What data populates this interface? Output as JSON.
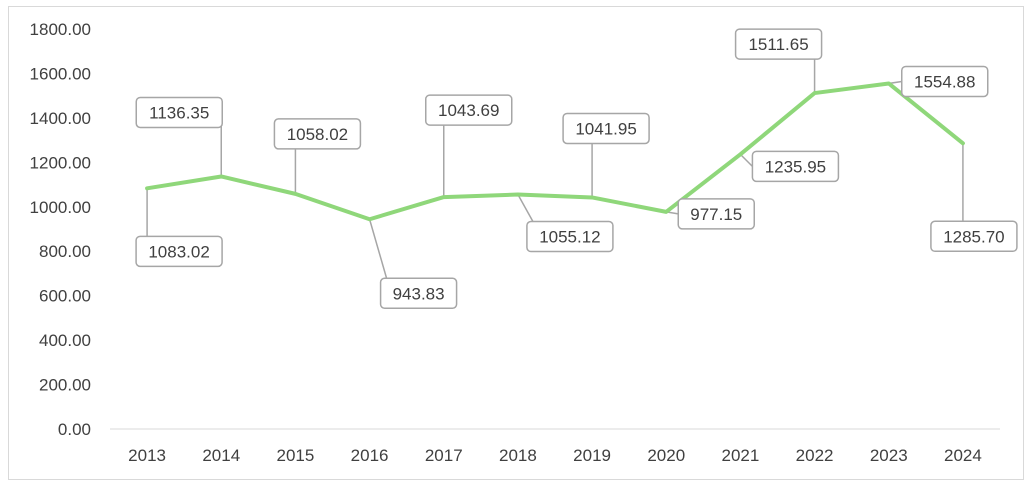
{
  "chart_data": {
    "type": "line",
    "categories": [
      "2013",
      "2014",
      "2015",
      "2016",
      "2017",
      "2018",
      "2019",
      "2020",
      "2021",
      "2022",
      "2023",
      "2024"
    ],
    "series": [
      {
        "values": [
          1083.02,
          1136.35,
          1058.02,
          943.83,
          1043.69,
          1055.12,
          1041.95,
          977.15,
          1235.95,
          1511.65,
          1554.88,
          1285.7
        ],
        "labels": [
          "1083.02",
          "1136.35",
          "1058.02",
          "943.83",
          "1043.69",
          "1055.12",
          "1041.95",
          "977.15",
          "1235.95",
          "1511.65",
          "1554.88",
          "1285.70"
        ],
        "color": "#8fd77a"
      }
    ],
    "yticks": [
      "0.00",
      "200.00",
      "400.00",
      "600.00",
      "800.00",
      "1000.00",
      "1200.00",
      "1400.00",
      "1600.00",
      "1800.00"
    ],
    "ylim": [
      0,
      1800
    ],
    "title": "",
    "xlabel": "",
    "ylabel": "",
    "grid": false,
    "legend": "none"
  },
  "colors": {
    "line": "#8fd77a",
    "leader": "#a6a6a6",
    "label_border": "#a6a6a6",
    "axis": "#d9d9d9",
    "text": "#404040"
  }
}
